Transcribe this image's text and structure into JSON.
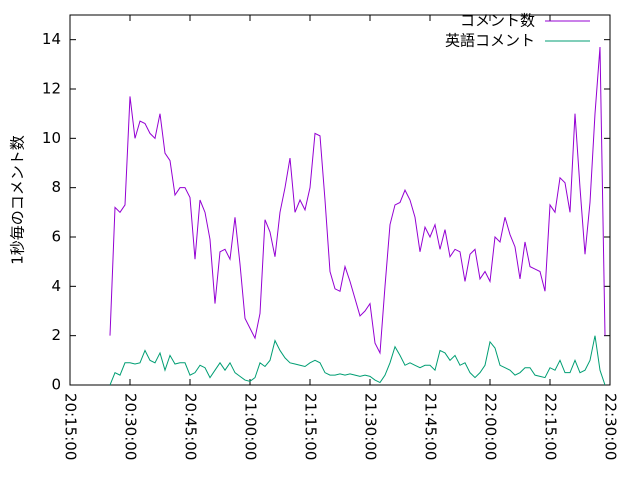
{
  "chart_data": {
    "type": "line",
    "ylabel": "1秒毎のコメント数",
    "x": [
      "20:25:00",
      "20:26:15",
      "20:27:30",
      "20:28:45",
      "20:30:00",
      "20:31:15",
      "20:32:30",
      "20:33:45",
      "20:35:00",
      "20:36:15",
      "20:37:30",
      "20:38:45",
      "20:40:00",
      "20:41:15",
      "20:42:30",
      "20:43:45",
      "20:45:00",
      "20:46:15",
      "20:47:30",
      "20:48:45",
      "20:50:00",
      "20:51:15",
      "20:52:30",
      "20:53:45",
      "20:55:00",
      "20:56:15",
      "20:57:30",
      "20:58:45",
      "21:00:00",
      "21:01:15",
      "21:02:30",
      "21:03:45",
      "21:05:00",
      "21:06:15",
      "21:07:30",
      "21:08:45",
      "21:10:00",
      "21:11:15",
      "21:12:30",
      "21:13:45",
      "21:15:00",
      "21:16:15",
      "21:17:30",
      "21:18:45",
      "21:20:00",
      "21:21:15",
      "21:22:30",
      "21:23:45",
      "21:25:00",
      "21:26:15",
      "21:27:30",
      "21:28:45",
      "21:30:00",
      "21:31:15",
      "21:32:30",
      "21:33:45",
      "21:35:00",
      "21:36:15",
      "21:37:30",
      "21:38:45",
      "21:40:00",
      "21:41:15",
      "21:42:30",
      "21:43:45",
      "21:45:00",
      "21:46:15",
      "21:47:30",
      "21:48:45",
      "21:50:00",
      "21:51:15",
      "21:52:30",
      "21:53:45",
      "21:55:00",
      "21:56:15",
      "21:57:30",
      "21:58:45",
      "22:00:00",
      "22:01:15",
      "22:02:30",
      "22:03:45",
      "22:05:00",
      "22:06:15",
      "22:07:30",
      "22:08:45",
      "22:10:00",
      "22:11:15",
      "22:12:30",
      "22:13:45",
      "22:15:00",
      "22:16:15",
      "22:17:30",
      "22:18:45",
      "22:20:00",
      "22:21:15",
      "22:22:30",
      "22:23:45",
      "22:25:00",
      "22:26:15",
      "22:27:30",
      "22:28:45"
    ],
    "series": [
      {
        "name": "コメント数",
        "color": "#9400d3",
        "values": [
          2.0,
          7.2,
          7.0,
          7.3,
          11.7,
          10.0,
          10.7,
          10.6,
          10.2,
          10.0,
          11.0,
          9.4,
          9.1,
          7.7,
          8.0,
          8.0,
          7.6,
          5.1,
          7.5,
          7.0,
          5.9,
          3.3,
          5.4,
          5.5,
          5.1,
          6.8,
          4.9,
          2.7,
          2.3,
          1.9,
          2.9,
          6.7,
          6.2,
          5.2,
          7.0,
          8.0,
          9.2,
          7.0,
          7.5,
          7.1,
          8.0,
          10.2,
          10.1,
          7.5,
          4.6,
          3.9,
          3.8,
          4.8,
          4.2,
          3.5,
          2.8,
          3.0,
          3.3,
          1.7,
          1.3,
          4.0,
          6.5,
          7.3,
          7.4,
          7.9,
          7.5,
          6.8,
          5.4,
          6.4,
          6.0,
          6.5,
          5.5,
          6.3,
          5.2,
          5.5,
          5.4,
          4.2,
          5.3,
          5.5,
          4.3,
          4.6,
          4.2,
          6.0,
          5.8,
          6.8,
          6.1,
          5.6,
          4.3,
          5.8,
          4.8,
          4.7,
          4.6,
          3.8,
          7.3,
          7.0,
          8.4,
          8.2,
          7.0,
          11.0,
          8.0,
          5.3,
          7.4,
          11.0,
          13.7,
          2.0
        ]
      },
      {
        "name": "英語コメント",
        "color": "#009e73",
        "values": [
          0,
          0.5,
          0.4,
          0.9,
          0.9,
          0.85,
          0.9,
          1.4,
          1.0,
          0.9,
          1.3,
          0.6,
          1.2,
          0.85,
          0.9,
          0.9,
          0.4,
          0.5,
          0.8,
          0.7,
          0.3,
          0.6,
          0.9,
          0.6,
          0.9,
          0.5,
          0.35,
          0.2,
          0.15,
          0.3,
          0.9,
          0.75,
          1.0,
          1.8,
          1.4,
          1.1,
          0.9,
          0.85,
          0.8,
          0.75,
          0.9,
          1.0,
          0.9,
          0.5,
          0.4,
          0.4,
          0.45,
          0.4,
          0.45,
          0.4,
          0.35,
          0.4,
          0.35,
          0.2,
          0.1,
          0.4,
          0.9,
          1.55,
          1.2,
          0.8,
          0.9,
          0.8,
          0.7,
          0.8,
          0.8,
          0.6,
          1.4,
          1.3,
          1.0,
          1.2,
          0.8,
          0.9,
          0.5,
          0.3,
          0.5,
          0.8,
          1.75,
          1.5,
          0.8,
          0.7,
          0.6,
          0.4,
          0.5,
          0.7,
          0.7,
          0.4,
          0.35,
          0.3,
          0.7,
          0.6,
          1.0,
          0.5,
          0.5,
          1.0,
          0.5,
          0.6,
          1.0,
          2.0,
          0.6,
          0
        ]
      }
    ],
    "xlim": [
      "20:15:00",
      "22:30:00"
    ],
    "xticks": [
      "20:15:00",
      "20:30:00",
      "20:45:00",
      "21:00:00",
      "21:15:00",
      "21:30:00",
      "21:45:00",
      "22:00:00",
      "22:15:00",
      "22:30:00"
    ],
    "ylim": [
      0,
      15
    ],
    "yticks": [
      0,
      2,
      4,
      6,
      8,
      10,
      12,
      14
    ],
    "legend": "upper right",
    "grid": false
  }
}
